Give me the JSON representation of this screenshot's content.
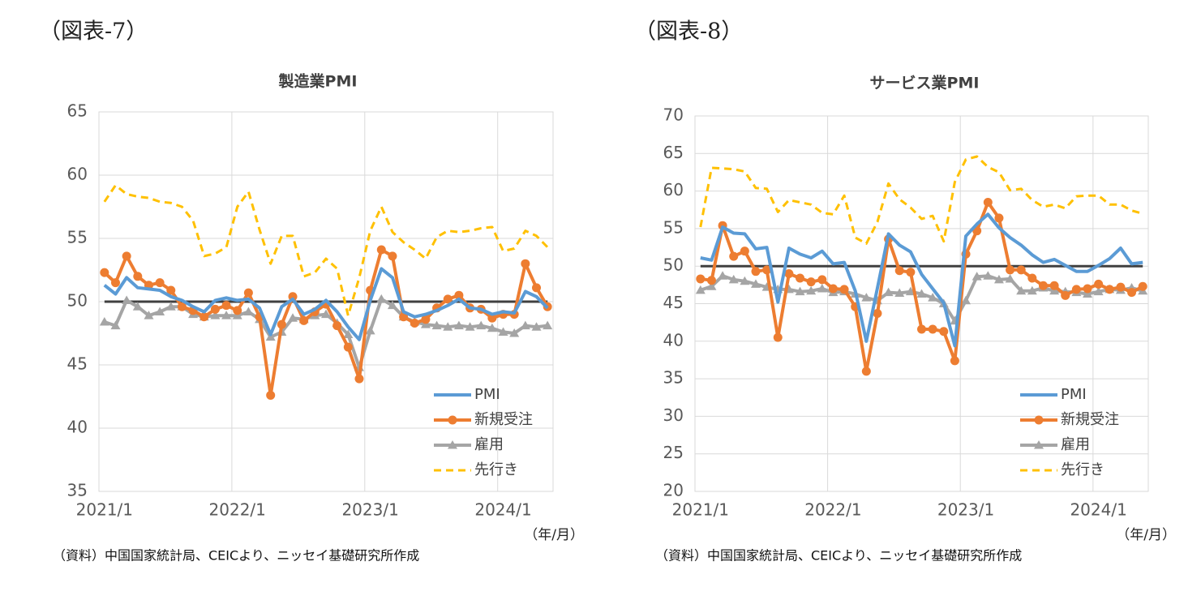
{
  "chart_data": [
    {
      "type": "line",
      "figure_label": "（図表-7）",
      "title": "製造業PMI",
      "x_unit": "（年/月）",
      "source": "（資料）中国国家統計局、CEICより、ニッセイ基礎研究所作成",
      "categories": [
        "2021/1",
        null,
        null,
        null,
        null,
        null,
        null,
        null,
        null,
        null,
        null,
        null,
        "2022/1",
        null,
        null,
        null,
        null,
        null,
        null,
        null,
        null,
        null,
        null,
        null,
        "2023/1",
        null,
        null,
        null,
        null,
        null,
        null,
        null,
        null,
        null,
        null,
        null,
        "2024/1",
        null,
        null,
        null,
        null
      ],
      "ylim": [
        35,
        65
      ],
      "yticks": [
        35,
        40,
        45,
        50,
        55,
        60,
        65
      ],
      "grid": true,
      "reference_line": 50,
      "legend": "lower right",
      "series": [
        {
          "name": "PMI",
          "color": "#5b9bd5",
          "marker": "none",
          "dash": false,
          "values": [
            51.3,
            50.6,
            51.9,
            51.1,
            51.0,
            50.9,
            50.4,
            50.1,
            49.6,
            49.2,
            50.1,
            50.3,
            50.1,
            50.2,
            49.5,
            47.4,
            49.6,
            50.2,
            49.0,
            49.4,
            50.1,
            49.2,
            48.0,
            47.0,
            50.1,
            52.6,
            51.9,
            49.2,
            48.8,
            49.0,
            49.3,
            49.7,
            50.2,
            49.5,
            49.4,
            49.0,
            49.2,
            49.1,
            50.8,
            50.4,
            49.5
          ]
        },
        {
          "name": "新規受注",
          "color": "#ed7d31",
          "marker": "circle",
          "dash": false,
          "values": [
            52.3,
            51.5,
            53.6,
            52.0,
            51.3,
            51.5,
            50.9,
            49.6,
            49.3,
            48.8,
            49.4,
            49.7,
            49.3,
            50.7,
            48.8,
            42.6,
            48.2,
            50.4,
            48.5,
            49.2,
            49.8,
            48.1,
            46.4,
            43.9,
            50.9,
            54.1,
            53.6,
            48.8,
            48.3,
            48.6,
            49.5,
            50.2,
            50.5,
            49.5,
            49.4,
            48.7,
            49.0,
            49.0,
            53.0,
            51.1,
            49.6
          ]
        },
        {
          "name": "雇用",
          "color": "#a5a5a5",
          "marker": "triangle",
          "dash": false,
          "values": [
            48.4,
            48.1,
            50.1,
            49.6,
            48.9,
            49.2,
            49.6,
            49.6,
            49.0,
            48.8,
            48.9,
            48.9,
            48.9,
            49.2,
            48.6,
            47.2,
            47.6,
            48.7,
            48.6,
            48.9,
            49.0,
            48.3,
            47.4,
            44.8,
            47.7,
            50.2,
            49.7,
            48.8,
            48.4,
            48.2,
            48.1,
            48.0,
            48.1,
            48.0,
            48.1,
            47.9,
            47.6,
            47.5,
            48.1,
            48.0,
            48.1
          ]
        },
        {
          "name": "先行き",
          "color": "#ffc000",
          "marker": "none",
          "dash": true,
          "values": [
            57.9,
            59.2,
            58.5,
            58.3,
            58.2,
            57.9,
            57.8,
            57.5,
            56.4,
            53.6,
            53.8,
            54.3,
            57.5,
            58.7,
            55.7,
            53.0,
            55.2,
            55.2,
            52.0,
            52.3,
            53.4,
            52.6,
            48.9,
            51.9,
            55.6,
            57.5,
            55.5,
            54.7,
            54.1,
            53.4,
            55.1,
            55.6,
            55.5,
            55.6,
            55.8,
            55.9,
            54.0,
            54.2,
            55.6,
            55.2,
            54.3
          ]
        }
      ]
    },
    {
      "type": "line",
      "figure_label": "（図表-8）",
      "title": "サービス業PMI",
      "x_unit": "（年/月）",
      "source": "（資料）中国国家統計局、CEICより、ニッセイ基礎研究所作成",
      "categories": [
        "2021/1",
        null,
        null,
        null,
        null,
        null,
        null,
        null,
        null,
        null,
        null,
        null,
        "2022/1",
        null,
        null,
        null,
        null,
        null,
        null,
        null,
        null,
        null,
        null,
        null,
        "2023/1",
        null,
        null,
        null,
        null,
        null,
        null,
        null,
        null,
        null,
        null,
        null,
        "2024/1",
        null,
        null,
        null,
        null
      ],
      "ylim": [
        20,
        70
      ],
      "yticks": [
        20,
        25,
        30,
        35,
        40,
        45,
        50,
        55,
        60,
        65,
        70
      ],
      "grid": true,
      "reference_line": 50,
      "legend": "lower right",
      "series": [
        {
          "name": "PMI",
          "color": "#5b9bd5",
          "marker": "none",
          "dash": false,
          "values": [
            51.1,
            50.8,
            55.2,
            54.4,
            54.3,
            52.3,
            52.5,
            45.2,
            52.4,
            51.6,
            51.1,
            52.0,
            50.3,
            50.5,
            46.7,
            40.0,
            47.1,
            54.3,
            52.8,
            51.9,
            48.9,
            47.0,
            45.1,
            39.4,
            54.0,
            55.6,
            56.9,
            55.1,
            53.8,
            52.8,
            51.5,
            50.5,
            50.9,
            50.1,
            49.3,
            49.3,
            50.1,
            51.0,
            52.4,
            50.3,
            50.5
          ]
        },
        {
          "name": "新規受注",
          "color": "#ed7d31",
          "marker": "circle",
          "dash": false,
          "values": [
            48.3,
            48.1,
            55.4,
            51.3,
            52.0,
            49.3,
            49.5,
            40.5,
            49.0,
            48.4,
            47.9,
            48.2,
            47.0,
            46.9,
            44.6,
            36.0,
            43.7,
            53.6,
            49.4,
            49.2,
            41.6,
            41.6,
            41.3,
            37.4,
            51.6,
            54.7,
            58.5,
            56.4,
            49.5,
            49.5,
            48.4,
            47.4,
            47.4,
            46.1,
            46.9,
            47.0,
            47.6,
            46.9,
            47.2,
            46.5,
            47.3
          ]
        },
        {
          "name": "雇用",
          "color": "#a5a5a5",
          "marker": "triangle",
          "dash": false,
          "values": [
            46.8,
            47.3,
            48.7,
            48.2,
            48.0,
            47.6,
            47.2,
            46.9,
            46.9,
            46.6,
            46.7,
            47.0,
            46.5,
            46.6,
            46.3,
            45.8,
            45.4,
            46.5,
            46.4,
            46.6,
            46.3,
            45.8,
            45.0,
            42.7,
            45.4,
            48.6,
            48.7,
            48.2,
            48.3,
            46.7,
            46.7,
            47.1,
            46.7,
            46.6,
            46.5,
            46.3,
            46.6,
            46.9,
            46.8,
            47.1,
            46.7
          ]
        },
        {
          "name": "先行き",
          "color": "#ffc000",
          "marker": "none",
          "dash": true,
          "values": [
            55.2,
            63.1,
            63.0,
            62.9,
            62.6,
            60.4,
            60.3,
            57.2,
            58.8,
            58.5,
            58.2,
            57.1,
            56.9,
            59.4,
            53.8,
            53.0,
            55.9,
            61.0,
            58.9,
            57.8,
            56.3,
            56.7,
            53.3,
            61.2,
            64.2,
            64.6,
            63.2,
            62.5,
            60.1,
            60.3,
            58.8,
            57.9,
            58.2,
            57.7,
            59.3,
            59.4,
            59.4,
            58.2,
            58.2,
            57.4,
            57.0
          ]
        }
      ]
    }
  ]
}
